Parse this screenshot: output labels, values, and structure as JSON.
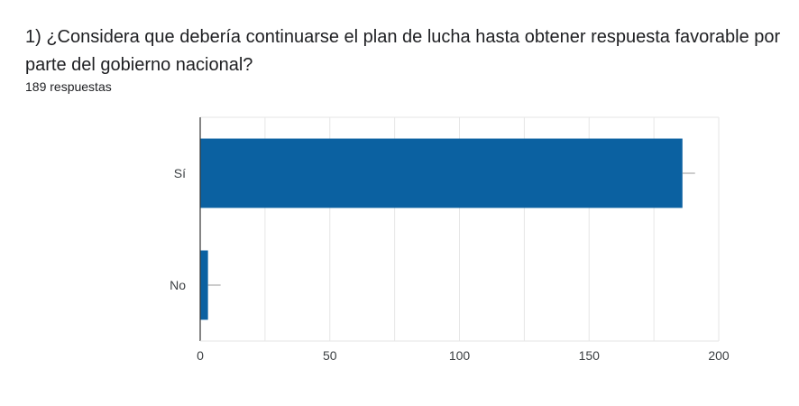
{
  "question": {
    "title": "1) ¿Considera que debería continuarse el plan de lucha hasta obtener respuesta favorable por parte del gobierno nacional?",
    "responses": "189 respuestas"
  },
  "chart_data": {
    "type": "bar",
    "orientation": "horizontal",
    "categories": [
      "Sí",
      "No"
    ],
    "values": [
      186,
      3
    ],
    "xlim": [
      0,
      200
    ],
    "xticks": [
      0,
      50,
      100,
      150,
      200
    ],
    "grid": true,
    "bar_color": "#0b61a1",
    "legend": "none"
  }
}
